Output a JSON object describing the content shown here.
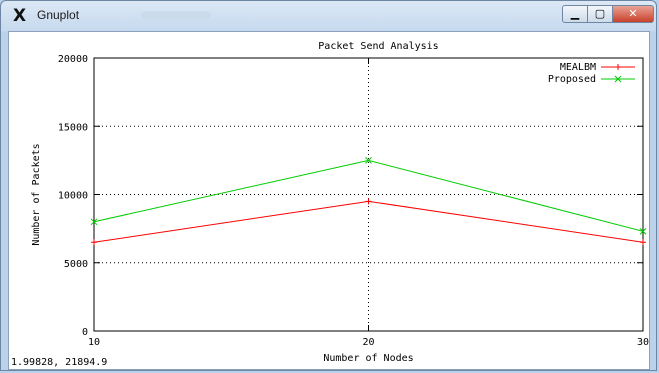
{
  "window": {
    "title": "Gnuplot",
    "logo_icon": "x11-logo-icon",
    "buttons": {
      "minimize_icon": "minimize-icon",
      "maximize_icon": "maximize-icon",
      "close_icon": "close-icon"
    }
  },
  "status_bar": {
    "coordinates": "1.99828,  21894.9"
  },
  "chart_data": {
    "type": "line",
    "title": "Packet Send Analysis",
    "xlabel": "Number of Nodes",
    "ylabel": "Number of Packets",
    "xlim": [
      10,
      30
    ],
    "ylim": [
      0,
      20000
    ],
    "x_ticks": [
      10,
      20,
      30
    ],
    "y_ticks": [
      0,
      5000,
      10000,
      15000,
      20000
    ],
    "grid": true,
    "legend_position": "top-right",
    "x": [
      10,
      20,
      30
    ],
    "series": [
      {
        "name": "MEALBM",
        "values": [
          6500,
          9500,
          6500
        ],
        "color": "#ff0000"
      },
      {
        "name": "Proposed",
        "values": [
          8000,
          12500,
          7300
        ],
        "color": "#00cc00"
      }
    ]
  }
}
